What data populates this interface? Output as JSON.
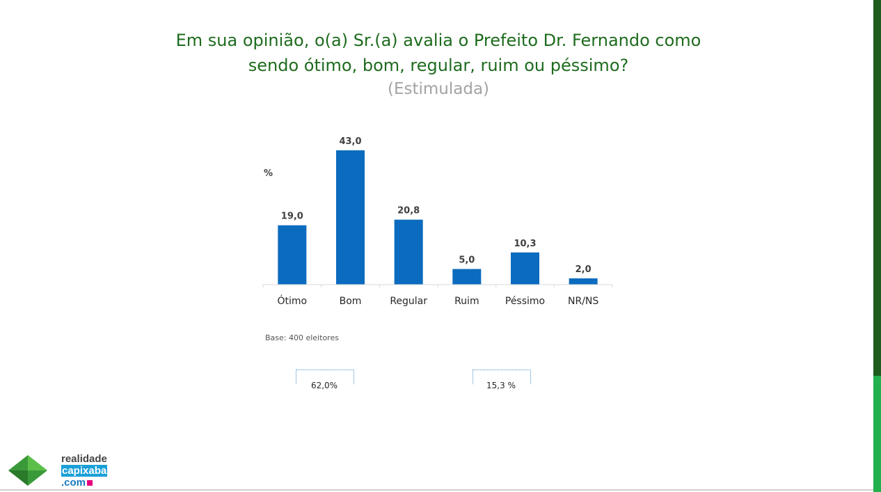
{
  "title_lines": [
    "Em sua opinião, o(a) Sr.(a) avalia o Prefeito Dr. Fernando como",
    "sendo ótimo, bom, regular, ruim ou péssimo?"
  ],
  "subtitle": "(Estimulada)",
  "base_note": "Base: 400 eleitores",
  "brackets": [
    {
      "label": "62,0%"
    },
    {
      "label": "15,3 %"
    }
  ],
  "logo": {
    "line1": "realidade",
    "line2": "capixaba",
    "line3": ".com"
  },
  "colors": {
    "bar": "#0b6bbf",
    "title": "#1e6b1e",
    "subtitle": "#a3a3a3",
    "accent_dark": "#1e5c1e",
    "accent_light": "#22b14c"
  },
  "chart_data": {
    "type": "bar",
    "unit_label": "%",
    "categories": [
      "Ótimo",
      "Bom",
      "Regular",
      "Ruim",
      "Péssimo",
      "NR/NS"
    ],
    "values": [
      19.0,
      43.0,
      20.8,
      5.0,
      10.3,
      2.0
    ],
    "value_labels": [
      "19,0",
      "43,0",
      "20,8",
      "5,0",
      "10,3",
      "2,0"
    ],
    "ylim": [
      0,
      43
    ],
    "grid": false,
    "legend": "none"
  }
}
